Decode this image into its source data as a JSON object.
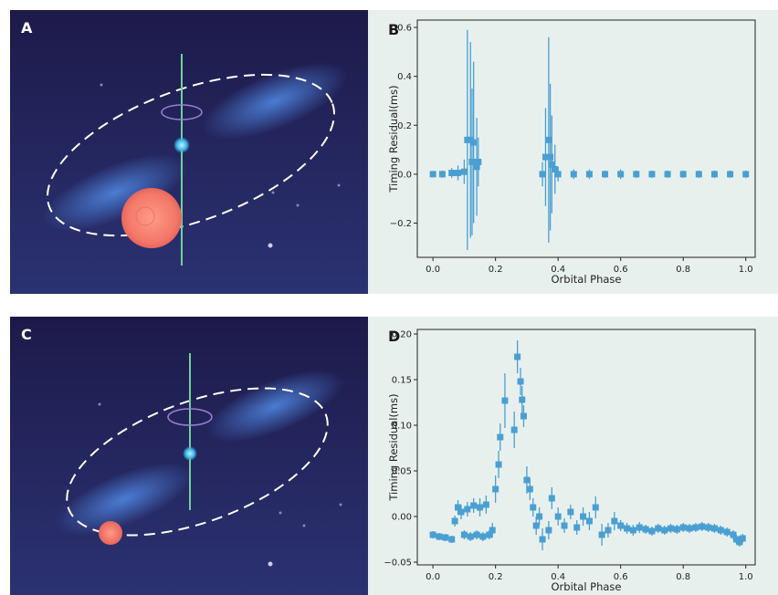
{
  "panels": {
    "A": {
      "label": "A"
    },
    "B": {
      "label": "B"
    },
    "C": {
      "label": "C"
    },
    "D": {
      "label": "D"
    }
  },
  "colors": {
    "space_top": "#1d1a4a",
    "space_bottom": "#2a3170",
    "plot_bg": "#e8f0ee",
    "series": "#4a9fd2",
    "star": "#f47a68",
    "axis_line": "#6fd19a"
  },
  "chart_data": [
    {
      "panel": "B",
      "type": "scatter",
      "title": "",
      "xlabel": "Orbital Phase",
      "ylabel": "Timing Residual(ms)",
      "xlim": [
        -0.05,
        1.03
      ],
      "ylim": [
        -0.34,
        0.63
      ],
      "xticks": [
        "0.0",
        "0.2",
        "0.4",
        "0.6",
        "0.8",
        "1.0"
      ],
      "yticks": [
        "0.6",
        "0.4",
        "0.2",
        "0.0",
        "−0.2"
      ],
      "xtick_values": [
        0.0,
        0.2,
        0.4,
        0.6,
        0.8,
        1.0
      ],
      "ytick_values": [
        0.6,
        0.4,
        0.2,
        0.0,
        -0.2
      ],
      "grid": false,
      "series": [
        {
          "marker": "square",
          "points": [
            {
              "x": 0.0,
              "y": 0.0,
              "err": 0.01
            },
            {
              "x": 0.03,
              "y": 0.0,
              "err": 0.015
            },
            {
              "x": 0.06,
              "y": 0.005,
              "err": 0.02
            },
            {
              "x": 0.08,
              "y": 0.005,
              "err": 0.03
            },
            {
              "x": 0.1,
              "y": 0.01,
              "err": 0.05
            },
            {
              "x": 0.11,
              "y": 0.14,
              "err": 0.45
            },
            {
              "x": 0.12,
              "y": 0.14,
              "err": 0.4
            },
            {
              "x": 0.125,
              "y": 0.05,
              "err": 0.3
            },
            {
              "x": 0.13,
              "y": 0.13,
              "err": 0.33
            },
            {
              "x": 0.14,
              "y": 0.03,
              "err": 0.2
            },
            {
              "x": 0.145,
              "y": 0.05,
              "err": 0.1
            },
            {
              "x": 0.35,
              "y": 0.0,
              "err": 0.05
            },
            {
              "x": 0.36,
              "y": 0.07,
              "err": 0.2
            },
            {
              "x": 0.37,
              "y": 0.14,
              "err": 0.42
            },
            {
              "x": 0.375,
              "y": 0.07,
              "err": 0.3
            },
            {
              "x": 0.38,
              "y": 0.04,
              "err": 0.2
            },
            {
              "x": 0.39,
              "y": 0.02,
              "err": 0.1
            },
            {
              "x": 0.4,
              "y": 0.0,
              "err": 0.03
            },
            {
              "x": 0.45,
              "y": 0.0,
              "err": 0.02
            },
            {
              "x": 0.5,
              "y": 0.0,
              "err": 0.02
            },
            {
              "x": 0.55,
              "y": 0.0,
              "err": 0.015
            },
            {
              "x": 0.6,
              "y": 0.0,
              "err": 0.02
            },
            {
              "x": 0.65,
              "y": 0.0,
              "err": 0.015
            },
            {
              "x": 0.7,
              "y": 0.0,
              "err": 0.015
            },
            {
              "x": 0.75,
              "y": 0.0,
              "err": 0.015
            },
            {
              "x": 0.8,
              "y": 0.0,
              "err": 0.015
            },
            {
              "x": 0.85,
              "y": 0.0,
              "err": 0.015
            },
            {
              "x": 0.9,
              "y": 0.0,
              "err": 0.015
            },
            {
              "x": 0.95,
              "y": 0.0,
              "err": 0.015
            },
            {
              "x": 1.0,
              "y": 0.0,
              "err": 0.015
            }
          ]
        }
      ]
    },
    {
      "panel": "D",
      "type": "scatter",
      "title": "",
      "xlabel": "Orbital Phase",
      "ylabel": "Timing Residual(ms)",
      "xlim": [
        -0.05,
        1.03
      ],
      "ylim": [
        -0.053,
        0.205
      ],
      "xticks": [
        "0.0",
        "0.2",
        "0.4",
        "0.6",
        "0.8",
        "1.0"
      ],
      "yticks": [
        "0.20",
        "0.15",
        "0.10",
        "0.05",
        "0.00",
        "−0.05"
      ],
      "xtick_values": [
        0.0,
        0.2,
        0.4,
        0.6,
        0.8,
        1.0
      ],
      "ytick_values": [
        0.2,
        0.15,
        0.1,
        0.05,
        0.0,
        -0.05
      ],
      "grid": false,
      "series": [
        {
          "marker": "square",
          "points": [
            {
              "x": 0.0,
              "y": -0.02,
              "err": 0.004
            },
            {
              "x": 0.02,
              "y": -0.022,
              "err": 0.004
            },
            {
              "x": 0.04,
              "y": -0.023,
              "err": 0.004
            },
            {
              "x": 0.06,
              "y": -0.025,
              "err": 0.004
            },
            {
              "x": 0.07,
              "y": -0.005,
              "err": 0.006
            },
            {
              "x": 0.08,
              "y": 0.01,
              "err": 0.008
            },
            {
              "x": 0.09,
              "y": 0.005,
              "err": 0.008
            },
            {
              "x": 0.1,
              "y": -0.02,
              "err": 0.005
            },
            {
              "x": 0.11,
              "y": 0.008,
              "err": 0.008
            },
            {
              "x": 0.12,
              "y": -0.022,
              "err": 0.005
            },
            {
              "x": 0.13,
              "y": 0.012,
              "err": 0.008
            },
            {
              "x": 0.14,
              "y": -0.02,
              "err": 0.005
            },
            {
              "x": 0.15,
              "y": 0.01,
              "err": 0.01
            },
            {
              "x": 0.16,
              "y": -0.022,
              "err": 0.005
            },
            {
              "x": 0.17,
              "y": 0.013,
              "err": 0.01
            },
            {
              "x": 0.18,
              "y": -0.02,
              "err": 0.005
            },
            {
              "x": 0.19,
              "y": -0.015,
              "err": 0.008
            },
            {
              "x": 0.2,
              "y": 0.03,
              "err": 0.015
            },
            {
              "x": 0.21,
              "y": 0.057,
              "err": 0.015
            },
            {
              "x": 0.215,
              "y": 0.087,
              "err": 0.015
            },
            {
              "x": 0.23,
              "y": 0.127,
              "err": 0.03
            },
            {
              "x": 0.26,
              "y": 0.095,
              "err": 0.02
            },
            {
              "x": 0.27,
              "y": 0.175,
              "err": 0.018
            },
            {
              "x": 0.28,
              "y": 0.148,
              "err": 0.015
            },
            {
              "x": 0.285,
              "y": 0.128,
              "err": 0.015
            },
            {
              "x": 0.29,
              "y": 0.11,
              "err": 0.012
            },
            {
              "x": 0.3,
              "y": 0.04,
              "err": 0.015
            },
            {
              "x": 0.31,
              "y": 0.03,
              "err": 0.012
            },
            {
              "x": 0.32,
              "y": 0.01,
              "err": 0.01
            },
            {
              "x": 0.33,
              "y": -0.01,
              "err": 0.01
            },
            {
              "x": 0.34,
              "y": 0.0,
              "err": 0.01
            },
            {
              "x": 0.35,
              "y": -0.025,
              "err": 0.012
            },
            {
              "x": 0.37,
              "y": -0.015,
              "err": 0.01
            },
            {
              "x": 0.38,
              "y": 0.02,
              "err": 0.012
            },
            {
              "x": 0.4,
              "y": 0.0,
              "err": 0.01
            },
            {
              "x": 0.42,
              "y": -0.01,
              "err": 0.008
            },
            {
              "x": 0.44,
              "y": 0.005,
              "err": 0.008
            },
            {
              "x": 0.46,
              "y": -0.012,
              "err": 0.008
            },
            {
              "x": 0.48,
              "y": 0.0,
              "err": 0.01
            },
            {
              "x": 0.5,
              "y": -0.005,
              "err": 0.01
            },
            {
              "x": 0.52,
              "y": 0.01,
              "err": 0.012
            },
            {
              "x": 0.54,
              "y": -0.02,
              "err": 0.012
            },
            {
              "x": 0.56,
              "y": -0.015,
              "err": 0.008
            },
            {
              "x": 0.58,
              "y": -0.005,
              "err": 0.01
            },
            {
              "x": 0.6,
              "y": -0.01,
              "err": 0.006
            },
            {
              "x": 0.62,
              "y": -0.013,
              "err": 0.006
            },
            {
              "x": 0.64,
              "y": -0.015,
              "err": 0.006
            },
            {
              "x": 0.66,
              "y": -0.012,
              "err": 0.006
            },
            {
              "x": 0.68,
              "y": -0.014,
              "err": 0.005
            },
            {
              "x": 0.7,
              "y": -0.016,
              "err": 0.005
            },
            {
              "x": 0.72,
              "y": -0.013,
              "err": 0.005
            },
            {
              "x": 0.74,
              "y": -0.015,
              "err": 0.005
            },
            {
              "x": 0.76,
              "y": -0.013,
              "err": 0.005
            },
            {
              "x": 0.78,
              "y": -0.014,
              "err": 0.005
            },
            {
              "x": 0.8,
              "y": -0.012,
              "err": 0.005
            },
            {
              "x": 0.82,
              "y": -0.013,
              "err": 0.005
            },
            {
              "x": 0.84,
              "y": -0.012,
              "err": 0.005
            },
            {
              "x": 0.86,
              "y": -0.011,
              "err": 0.005
            },
            {
              "x": 0.88,
              "y": -0.012,
              "err": 0.005
            },
            {
              "x": 0.9,
              "y": -0.013,
              "err": 0.005
            },
            {
              "x": 0.92,
              "y": -0.015,
              "err": 0.005
            },
            {
              "x": 0.94,
              "y": -0.017,
              "err": 0.005
            },
            {
              "x": 0.96,
              "y": -0.02,
              "err": 0.005
            },
            {
              "x": 0.97,
              "y": -0.025,
              "err": 0.005
            },
            {
              "x": 0.98,
              "y": -0.028,
              "err": 0.005
            },
            {
              "x": 0.99,
              "y": -0.024,
              "err": 0.005
            }
          ]
        }
      ]
    }
  ]
}
